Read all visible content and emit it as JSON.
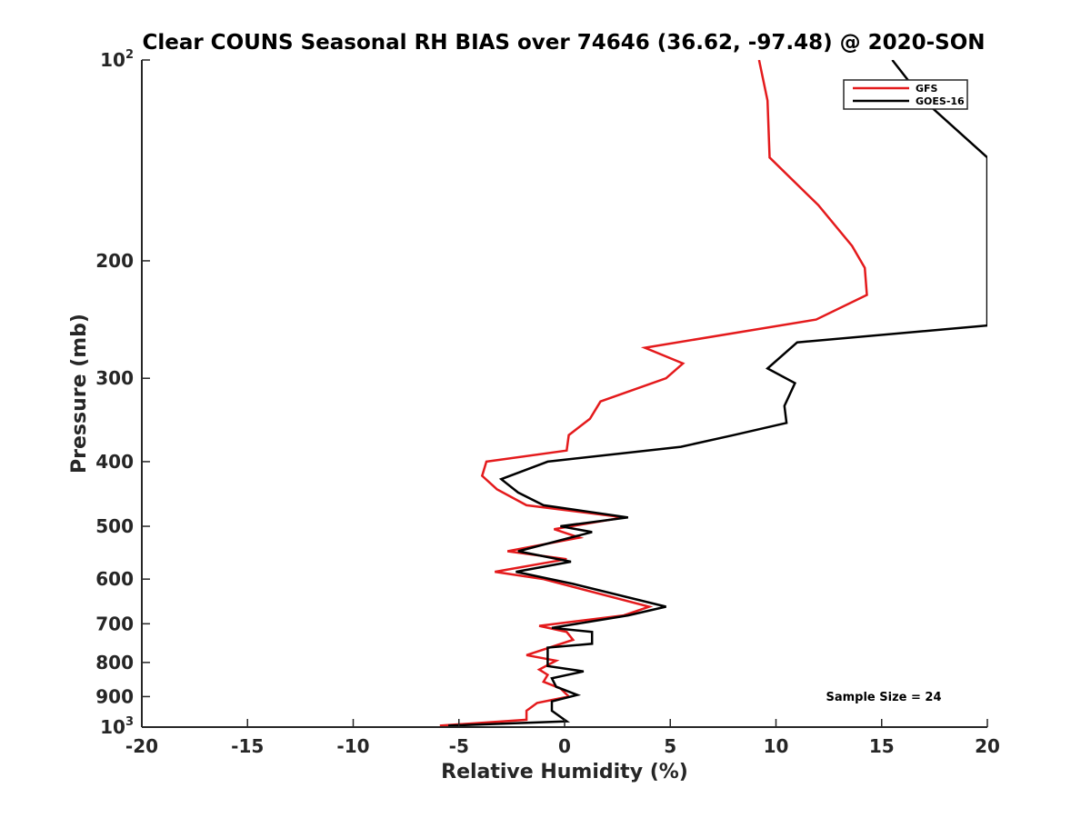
{
  "chart_data": {
    "type": "line",
    "title": "Clear COUNS Seasonal RH BIAS over 74646 (36.62, -97.48) @ 2020-SON",
    "xlabel": "Relative Humidity (%)",
    "ylabel": "Pressure (mb)",
    "xlim": [
      -20,
      20
    ],
    "ylim": [
      100,
      1000
    ],
    "y_scale": "log",
    "y_reversed": true,
    "x_ticks": [
      "-20",
      "-15",
      "-10",
      "-5",
      "0",
      "5",
      "10",
      "15",
      "20"
    ],
    "y_ticks": [
      {
        "value": 100,
        "base": "10",
        "exp": "2"
      },
      {
        "value": 200,
        "label": "200"
      },
      {
        "value": 300,
        "label": "300"
      },
      {
        "value": 400,
        "label": "400"
      },
      {
        "value": 500,
        "label": "500"
      },
      {
        "value": 600,
        "label": "600"
      },
      {
        "value": 700,
        "label": "700"
      },
      {
        "value": 800,
        "label": "800"
      },
      {
        "value": 900,
        "label": "900"
      },
      {
        "value": 1000,
        "base": "10",
        "exp": "3"
      }
    ],
    "legend": "top-right",
    "grid": false,
    "annotation": "Sample Size = 24",
    "series": [
      {
        "name": "GFS",
        "color": "#e41a1c",
        "points": [
          [
            9.2,
            100
          ],
          [
            9.6,
            115
          ],
          [
            9.7,
            140
          ],
          [
            12.0,
            165
          ],
          [
            13.6,
            190
          ],
          [
            14.2,
            205
          ],
          [
            14.3,
            225
          ],
          [
            11.9,
            245
          ],
          [
            3.8,
            270
          ],
          [
            5.6,
            285
          ],
          [
            4.8,
            300
          ],
          [
            1.7,
            325
          ],
          [
            1.2,
            345
          ],
          [
            0.2,
            365
          ],
          [
            0.1,
            385
          ],
          [
            -3.7,
            400
          ],
          [
            -3.9,
            420
          ],
          [
            -3.2,
            440
          ],
          [
            -1.8,
            465
          ],
          [
            2.8,
            485
          ],
          [
            -0.5,
            505
          ],
          [
            0.7,
            520
          ],
          [
            -2.7,
            545
          ],
          [
            0.1,
            560
          ],
          [
            -3.3,
            585
          ],
          [
            -1.0,
            600
          ],
          [
            4.0,
            660
          ],
          [
            2.8,
            680
          ],
          [
            -1.2,
            705
          ],
          [
            0.1,
            720
          ],
          [
            0.4,
            740
          ],
          [
            -1.8,
            780
          ],
          [
            -0.4,
            795
          ],
          [
            -1.2,
            820
          ],
          [
            -0.8,
            835
          ],
          [
            -1.0,
            855
          ],
          [
            -0.2,
            875
          ],
          [
            0.2,
            900
          ],
          [
            -1.3,
            920
          ],
          [
            -1.8,
            945
          ],
          [
            -1.8,
            975
          ],
          [
            -5.9,
            995
          ]
        ]
      },
      {
        "name": "GOES-16",
        "color": "#000000",
        "points": [
          [
            15.5,
            100
          ],
          [
            17.0,
            115
          ],
          [
            20.0,
            140
          ],
          [
            20.0,
            250
          ],
          [
            11.0,
            265
          ],
          [
            9.6,
            290
          ],
          [
            10.9,
            305
          ],
          [
            10.4,
            330
          ],
          [
            10.5,
            350
          ],
          [
            8.0,
            365
          ],
          [
            5.5,
            380
          ],
          [
            -0.8,
            400
          ],
          [
            -3.0,
            425
          ],
          [
            -2.2,
            445
          ],
          [
            -1.0,
            465
          ],
          [
            3.0,
            485
          ],
          [
            -0.2,
            500
          ],
          [
            1.3,
            510
          ],
          [
            -2.2,
            545
          ],
          [
            0.3,
            565
          ],
          [
            -2.3,
            585
          ],
          [
            0.4,
            610
          ],
          [
            4.8,
            660
          ],
          [
            3.0,
            680
          ],
          [
            -0.6,
            710
          ],
          [
            1.3,
            720
          ],
          [
            1.3,
            750
          ],
          [
            -0.8,
            760
          ],
          [
            -0.8,
            810
          ],
          [
            0.9,
            825
          ],
          [
            -0.6,
            845
          ],
          [
            -0.4,
            870
          ],
          [
            0.6,
            895
          ],
          [
            -0.6,
            915
          ],
          [
            -0.6,
            945
          ],
          [
            0.1,
            980
          ],
          [
            -5.5,
            995
          ]
        ]
      }
    ]
  }
}
